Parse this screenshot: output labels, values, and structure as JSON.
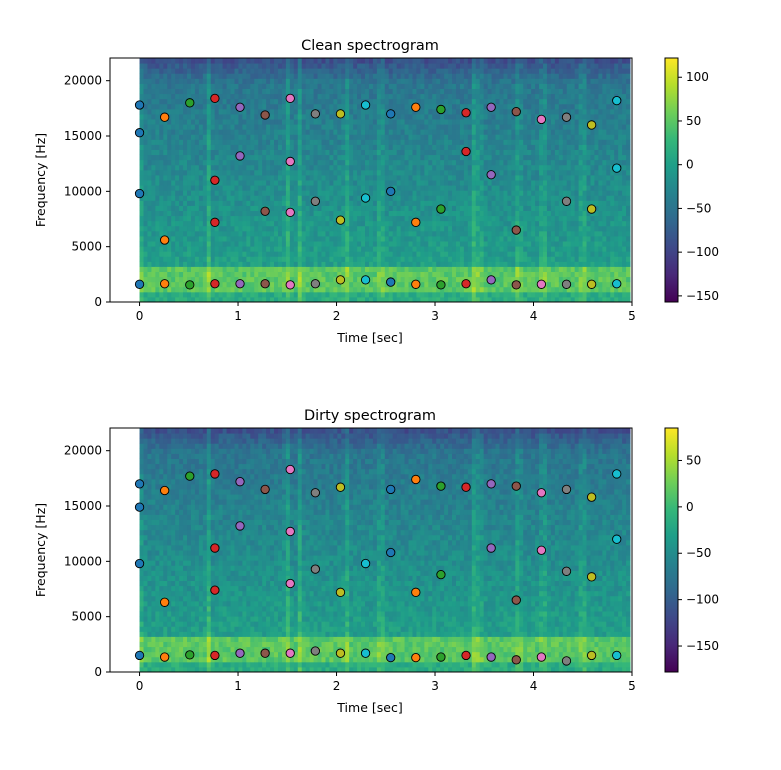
{
  "colors": {
    "viridis": [
      "#440154",
      "#482878",
      "#3e4989",
      "#31688e",
      "#26828e",
      "#1f9e89",
      "#35b779",
      "#6ece58",
      "#b5de2b",
      "#fde725"
    ],
    "markers": [
      "#1f77b4",
      "#ff7f0e",
      "#2ca02c",
      "#d62728",
      "#9467bd",
      "#8c564b",
      "#e377c2",
      "#7f7f7f",
      "#bcbd22",
      "#17becf"
    ]
  },
  "chart_data": [
    {
      "type": "heatmap",
      "title": "Clean spectrogram",
      "xlabel": "Time [sec]",
      "ylabel": "Frequency [Hz]",
      "xlim": [
        -0.3,
        5
      ],
      "ylim": [
        0,
        22050
      ],
      "xticks": [
        "0",
        "1",
        "2",
        "3",
        "4",
        "5"
      ],
      "yticks": [
        "0",
        "5000",
        "10000",
        "15000",
        "20000"
      ],
      "colorbar": {
        "min": -157,
        "max": 122,
        "ticks": [
          "100",
          "50",
          "0",
          "−50",
          "−100",
          "−150"
        ],
        "tick_values": [
          100,
          50,
          0,
          -50,
          -100,
          -150
        ]
      },
      "onset_columns": [
        0.0,
        0.7,
        1.5,
        1.63,
        2.1,
        2.45,
        3.4,
        3.45,
        3.85,
        4.1,
        4.5
      ],
      "frames": [
        {
          "t": 0.0,
          "color": "#1f77b4",
          "freqs": [
            1600,
            9800,
            15300,
            17800
          ]
        },
        {
          "t": 0.255,
          "color": "#ff7f0e",
          "freqs": [
            1650,
            5600,
            16700
          ]
        },
        {
          "t": 0.51,
          "color": "#2ca02c",
          "freqs": [
            1550,
            18000
          ]
        },
        {
          "t": 0.765,
          "color": "#d62728",
          "freqs": [
            1650,
            7200,
            11000,
            18400
          ]
        },
        {
          "t": 1.02,
          "color": "#9467bd",
          "freqs": [
            1650,
            13200,
            17600
          ]
        },
        {
          "t": 1.275,
          "color": "#8c564b",
          "freqs": [
            1650,
            8200,
            16900
          ]
        },
        {
          "t": 1.53,
          "color": "#e377c2",
          "freqs": [
            1550,
            8100,
            12700,
            18400
          ]
        },
        {
          "t": 1.785,
          "color": "#7f7f7f",
          "freqs": [
            1650,
            9100,
            17000
          ]
        },
        {
          "t": 2.04,
          "color": "#bcbd22",
          "freqs": [
            2000,
            7400,
            17000
          ]
        },
        {
          "t": 2.295,
          "color": "#17becf",
          "freqs": [
            2000,
            9400,
            17800
          ]
        },
        {
          "t": 2.55,
          "color": "#1f77b4",
          "freqs": [
            1800,
            10000,
            17000
          ]
        },
        {
          "t": 2.805,
          "color": "#ff7f0e",
          "freqs": [
            1600,
            7200,
            17600
          ]
        },
        {
          "t": 3.06,
          "color": "#2ca02c",
          "freqs": [
            1550,
            8400,
            17400
          ]
        },
        {
          "t": 3.315,
          "color": "#d62728",
          "freqs": [
            1650,
            13600,
            17100
          ]
        },
        {
          "t": 3.57,
          "color": "#9467bd",
          "freqs": [
            2000,
            11500,
            17600
          ]
        },
        {
          "t": 3.825,
          "color": "#8c564b",
          "freqs": [
            1550,
            6500,
            17200
          ]
        },
        {
          "t": 4.08,
          "color": "#e377c2",
          "freqs": [
            1600,
            16500
          ]
        },
        {
          "t": 4.335,
          "color": "#7f7f7f",
          "freqs": [
            1600,
            9100,
            16700
          ]
        },
        {
          "t": 4.59,
          "color": "#bcbd22",
          "freqs": [
            1600,
            8400,
            16000
          ]
        },
        {
          "t": 4.845,
          "color": "#17becf",
          "freqs": [
            1650,
            12100,
            18200
          ]
        }
      ]
    },
    {
      "type": "heatmap",
      "title": "Dirty spectrogram",
      "xlabel": "Time [sec]",
      "ylabel": "Frequency [Hz]",
      "xlim": [
        -0.3,
        5
      ],
      "ylim": [
        0,
        22050
      ],
      "xticks": [
        "0",
        "1",
        "2",
        "3",
        "4",
        "5"
      ],
      "yticks": [
        "0",
        "5000",
        "10000",
        "15000",
        "20000"
      ],
      "colorbar": {
        "min": -178,
        "max": 85,
        "ticks": [
          "50",
          "0",
          "−50",
          "−100",
          "−150"
        ],
        "tick_values": [
          50,
          0,
          -50,
          -100,
          -150
        ]
      },
      "onset_columns": [
        0.0,
        0.7,
        1.5,
        1.63,
        2.1,
        2.45,
        3.4,
        3.45,
        3.85,
        4.1,
        4.5
      ],
      "frames": [
        {
          "t": 0.0,
          "color": "#1f77b4",
          "freqs": [
            1500,
            9800,
            14900,
            17000
          ]
        },
        {
          "t": 0.255,
          "color": "#ff7f0e",
          "freqs": [
            1350,
            6300,
            16400
          ]
        },
        {
          "t": 0.51,
          "color": "#2ca02c",
          "freqs": [
            1550,
            17700
          ]
        },
        {
          "t": 0.765,
          "color": "#d62728",
          "freqs": [
            1500,
            7400,
            11200,
            17900
          ]
        },
        {
          "t": 1.02,
          "color": "#9467bd",
          "freqs": [
            1700,
            13200,
            17200
          ]
        },
        {
          "t": 1.275,
          "color": "#8c564b",
          "freqs": [
            1700,
            16500
          ]
        },
        {
          "t": 1.53,
          "color": "#e377c2",
          "freqs": [
            1700,
            8000,
            12700,
            18300
          ]
        },
        {
          "t": 1.785,
          "color": "#7f7f7f",
          "freqs": [
            1900,
            9300,
            16200
          ]
        },
        {
          "t": 2.04,
          "color": "#bcbd22",
          "freqs": [
            1700,
            7200,
            16700
          ]
        },
        {
          "t": 2.295,
          "color": "#17becf",
          "freqs": [
            1700,
            9800
          ]
        },
        {
          "t": 2.55,
          "color": "#1f77b4",
          "freqs": [
            1300,
            10800,
            16500
          ]
        },
        {
          "t": 2.805,
          "color": "#ff7f0e",
          "freqs": [
            1300,
            7200,
            17400
          ]
        },
        {
          "t": 3.06,
          "color": "#2ca02c",
          "freqs": [
            1350,
            8800,
            16800
          ]
        },
        {
          "t": 3.315,
          "color": "#d62728",
          "freqs": [
            1500,
            16700
          ]
        },
        {
          "t": 3.57,
          "color": "#9467bd",
          "freqs": [
            1350,
            11200,
            17000
          ]
        },
        {
          "t": 3.825,
          "color": "#8c564b",
          "freqs": [
            1100,
            6500,
            16800
          ]
        },
        {
          "t": 4.08,
          "color": "#e377c2",
          "freqs": [
            1350,
            11000,
            16200
          ]
        },
        {
          "t": 4.335,
          "color": "#7f7f7f",
          "freqs": [
            1000,
            9100,
            16500
          ]
        },
        {
          "t": 4.59,
          "color": "#bcbd22",
          "freqs": [
            1500,
            8600,
            15800
          ]
        },
        {
          "t": 4.845,
          "color": "#17becf",
          "freqs": [
            1500,
            12000,
            17900
          ]
        }
      ]
    }
  ]
}
